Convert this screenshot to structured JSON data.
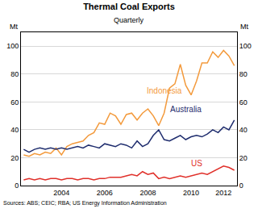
{
  "chart_data": {
    "type": "line",
    "title": "Thermal Coal Exports",
    "subtitle": "Quarterly",
    "y_label": "Mt",
    "y2_label": "Mt",
    "source": "Sources: ABS; CEIC; RBA; US Energy Information Administration",
    "categories": [
      null,
      null,
      null,
      null,
      null,
      null,
      null,
      "2004",
      null,
      null,
      null,
      null,
      null,
      null,
      null,
      "2006",
      null,
      null,
      null,
      null,
      null,
      null,
      null,
      "2008",
      null,
      null,
      null,
      null,
      null,
      null,
      null,
      "2010",
      null,
      null,
      null,
      null,
      null,
      "2012",
      null,
      null
    ],
    "series": [
      {
        "name": "Indonesia",
        "color": "#f39a3c",
        "values": [
          22,
          21,
          23,
          22,
          24,
          23,
          27,
          22,
          28,
          30,
          31,
          32,
          36,
          38,
          45,
          44,
          52,
          50,
          44,
          51,
          52,
          47,
          52,
          55,
          50,
          43,
          52,
          70,
          73,
          87,
          72,
          65,
          75,
          88,
          88,
          96,
          92,
          97,
          93,
          86
        ]
      },
      {
        "name": "Australia",
        "color": "#1f2d6e",
        "values": [
          26,
          24,
          26,
          27,
          26,
          27,
          26,
          27,
          26,
          27,
          28,
          27,
          29,
          28,
          27,
          30,
          29,
          28,
          30,
          29,
          27,
          32,
          28,
          30,
          36,
          40,
          33,
          32,
          34,
          36,
          33,
          35,
          36,
          35,
          37,
          40,
          38,
          42,
          40,
          47
        ]
      },
      {
        "name": "US",
        "color": "#e0302a",
        "values": [
          4,
          5,
          4,
          5,
          4,
          5,
          5,
          4,
          5,
          5,
          4,
          5,
          5,
          4,
          5,
          5,
          6,
          6,
          6,
          7,
          8,
          7,
          10,
          8,
          9,
          5,
          6,
          5,
          6,
          7,
          6,
          7,
          8,
          9,
          8,
          10,
          12,
          14,
          13,
          11
        ]
      }
    ],
    "ylim": [
      0,
      110
    ],
    "yticks": [
      0,
      20,
      40,
      60,
      80,
      100
    ],
    "y2lim": [
      0,
      110
    ],
    "y2ticks": [
      0,
      20,
      40,
      60,
      80,
      100
    ],
    "grid": true
  }
}
